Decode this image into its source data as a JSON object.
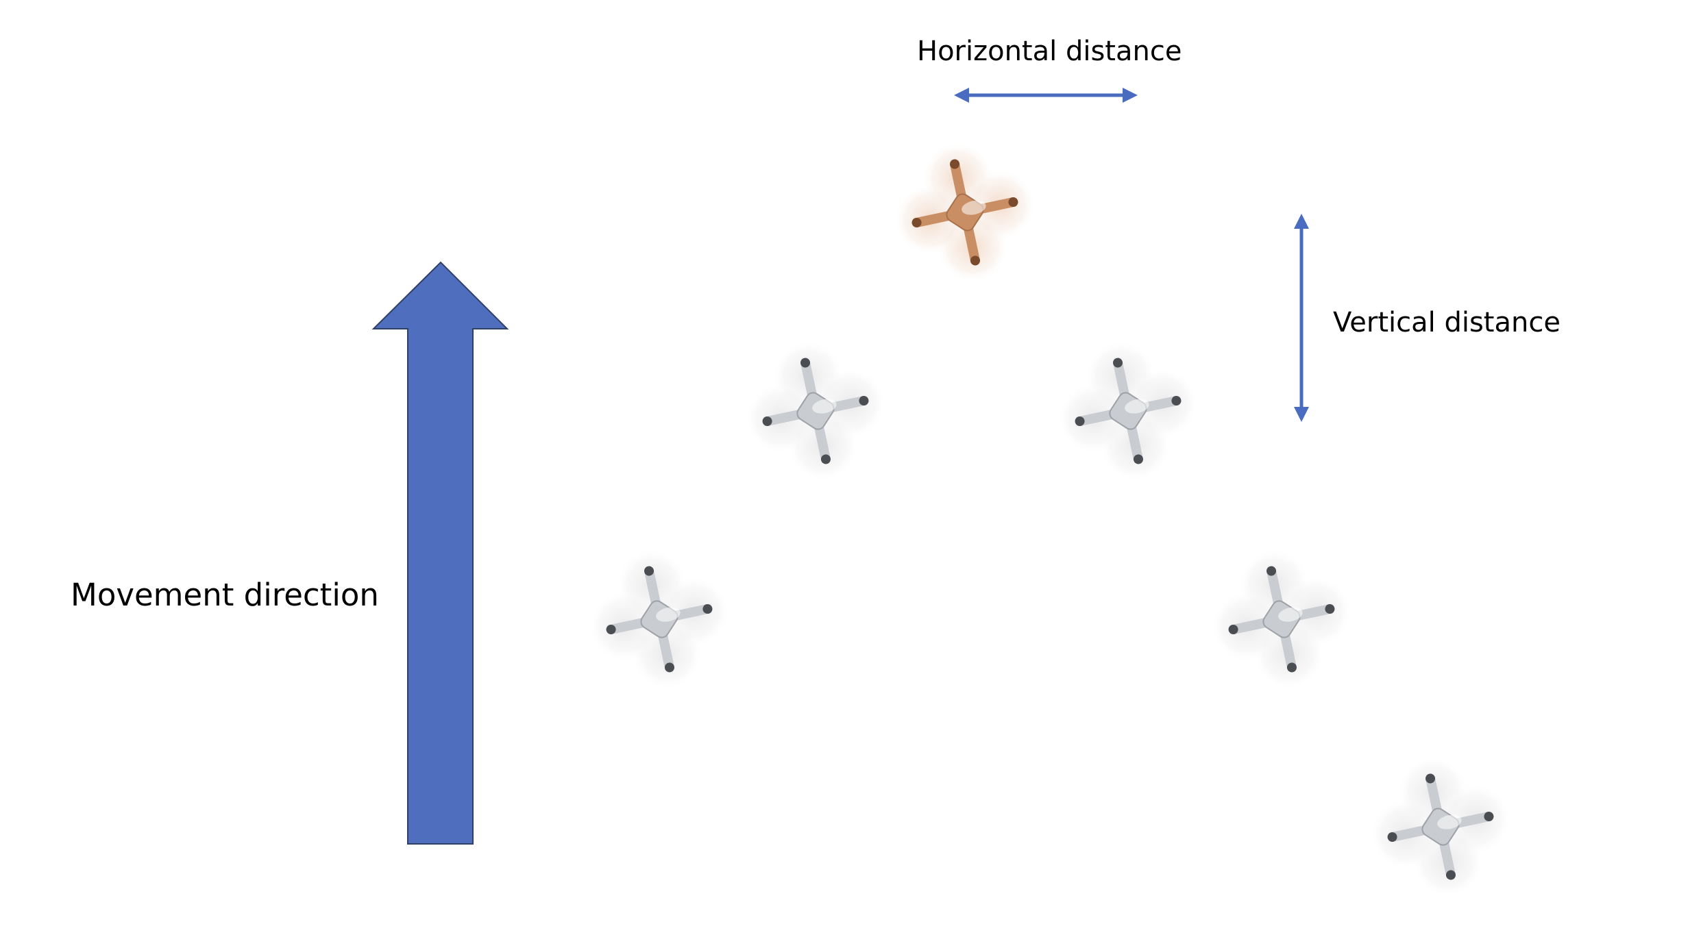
{
  "labels": {
    "horizontal": "Horizontal distance",
    "vertical": "Vertical distance",
    "movement": "Movement direction"
  },
  "colors": {
    "arrow": "#4f6fbe",
    "arrow_outline": "#2f3f66",
    "measure": "#4a6cc0",
    "leader_drone": "#c98e64",
    "follower_drone": "#c9ccd1"
  },
  "drones": [
    {
      "role": "leader"
    },
    {
      "role": "follower"
    },
    {
      "role": "follower"
    },
    {
      "role": "follower"
    },
    {
      "role": "follower"
    },
    {
      "role": "follower"
    }
  ]
}
